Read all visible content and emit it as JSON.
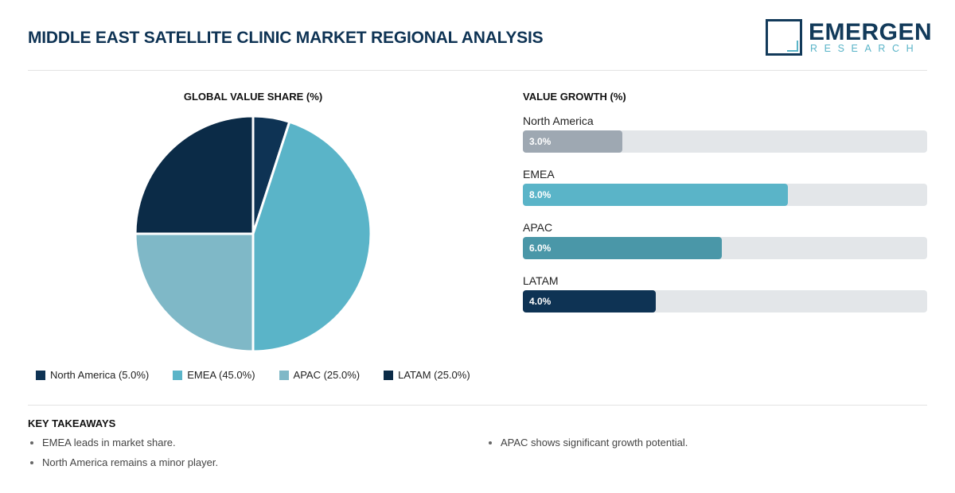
{
  "header": {
    "title": "MIDDLE EAST SATELLITE CLINIC MARKET REGIONAL ANALYSIS",
    "logo_word": "EMERGEN",
    "logo_sub": "RESEARCH"
  },
  "chart_data": [
    {
      "type": "pie",
      "title": "GLOBAL VALUE SHARE (%)",
      "categories": [
        "North America",
        "EMEA",
        "APAC",
        "LATAM"
      ],
      "values": [
        5.0,
        45.0,
        25.0,
        25.0
      ],
      "colors": [
        "#0e3354",
        "#5ab4c8",
        "#7fb8c7",
        "#0b2b47"
      ],
      "legend_labels": [
        "North America (5.0%)",
        "EMEA (45.0%)",
        "APAC (25.0%)",
        "LATAM (25.0%)"
      ],
      "legend_position": "bottom"
    },
    {
      "type": "bar",
      "orientation": "horizontal",
      "title": "VALUE GROWTH (%)",
      "categories": [
        "North America",
        "EMEA",
        "APAC",
        "LATAM"
      ],
      "values": [
        3.0,
        8.0,
        6.0,
        4.0
      ],
      "value_labels": [
        "3.0%",
        "8.0%",
        "6.0%",
        "4.0%"
      ],
      "xlim": [
        0,
        12.2
      ],
      "colors": [
        "#9ea8b2",
        "#5ab4c8",
        "#4a97a8",
        "#0e3354"
      ]
    }
  ],
  "takeaways": {
    "title": "KEY TAKEAWAYS",
    "left": [
      "EMEA leads in market share.",
      "North America remains a minor player."
    ],
    "right": [
      "APAC shows significant growth potential."
    ]
  }
}
